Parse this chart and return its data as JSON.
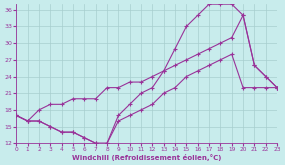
{
  "bg_color": "#c8ecec",
  "grid_color": "#a8cece",
  "line_color": "#993399",
  "xlabel": "Windchill (Refroidissement éolien,°C)",
  "xlim": [
    0,
    23
  ],
  "ylim": [
    12,
    37
  ],
  "yticks": [
    12,
    15,
    18,
    21,
    24,
    27,
    30,
    33,
    36
  ],
  "xticks": [
    0,
    1,
    2,
    3,
    4,
    5,
    6,
    7,
    8,
    9,
    10,
    11,
    12,
    13,
    14,
    15,
    16,
    17,
    18,
    19,
    20,
    21,
    22,
    23
  ],
  "line1_x": [
    0,
    1,
    2,
    3,
    4,
    5,
    6,
    7,
    8,
    9,
    10,
    11,
    12,
    13,
    14,
    15,
    16,
    17,
    18,
    19,
    20,
    21,
    22,
    23
  ],
  "line1_y": [
    17,
    16,
    16,
    15,
    14,
    14,
    13,
    12,
    12,
    17,
    19,
    21,
    22,
    25,
    29,
    33,
    35,
    37,
    37,
    37,
    35,
    26,
    24,
    22
  ],
  "line2_x": [
    0,
    1,
    2,
    3,
    4,
    5,
    6,
    7,
    8,
    9,
    10,
    11,
    12,
    13,
    14,
    15,
    16,
    17,
    18,
    19,
    20,
    21,
    22,
    23
  ],
  "line2_y": [
    17,
    16,
    18,
    19,
    19,
    20,
    20,
    20,
    22,
    22,
    23,
    23,
    24,
    25,
    26,
    27,
    28,
    29,
    30,
    31,
    35,
    26,
    24,
    22
  ],
  "line3_x": [
    0,
    1,
    2,
    3,
    4,
    5,
    6,
    7,
    8,
    9,
    10,
    11,
    12,
    13,
    14,
    15,
    16,
    17,
    18,
    19,
    20,
    21,
    22,
    23
  ],
  "line3_y": [
    17,
    16,
    16,
    15,
    14,
    14,
    13,
    12,
    12,
    16,
    17,
    18,
    19,
    21,
    22,
    24,
    25,
    26,
    27,
    28,
    22,
    22,
    22,
    22
  ]
}
